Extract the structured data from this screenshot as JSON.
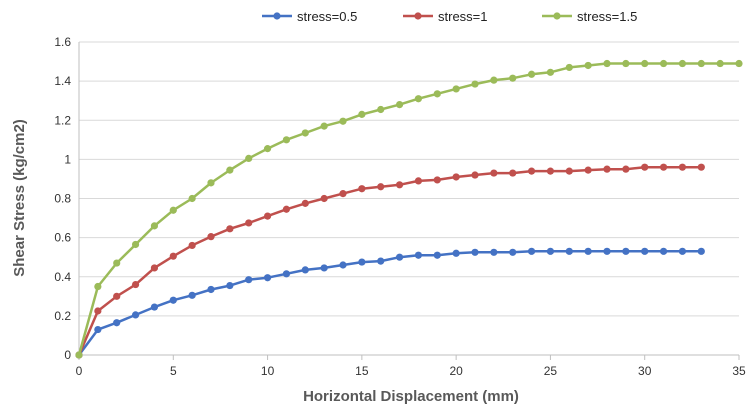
{
  "chart_data": {
    "type": "line",
    "title": "",
    "xlabel": "Horizontal Displacement (mm)",
    "ylabel": "Shear Stress (kg/cm2)",
    "xlim": [
      0,
      35
    ],
    "ylim": [
      0,
      1.6
    ],
    "x_ticks": [
      "0",
      "5",
      "10",
      "15",
      "20",
      "25",
      "30",
      "35"
    ],
    "y_ticks": [
      "0",
      "0.2",
      "0.4",
      "0.6",
      "0.8",
      "1",
      "1.2",
      "1.4",
      "1.6"
    ],
    "grid": "horizontal",
    "legend_position": "top",
    "series": [
      {
        "name": "stress=0.5",
        "color": "#4472c4",
        "x": [
          0,
          1,
          2,
          3,
          4,
          5,
          6,
          7,
          8,
          9,
          10,
          11,
          12,
          13,
          14,
          15,
          16,
          17,
          18,
          19,
          20,
          21,
          22,
          23,
          24,
          25,
          26,
          27,
          28,
          29,
          30,
          31,
          32,
          33
        ],
        "y": [
          0,
          0.13,
          0.165,
          0.205,
          0.245,
          0.28,
          0.305,
          0.335,
          0.355,
          0.385,
          0.395,
          0.415,
          0.435,
          0.445,
          0.46,
          0.475,
          0.48,
          0.5,
          0.51,
          0.51,
          0.52,
          0.525,
          0.525,
          0.525,
          0.53,
          0.53,
          0.53,
          0.53,
          0.53,
          0.53,
          0.53,
          0.53,
          0.53,
          0.53
        ]
      },
      {
        "name": "stress=1",
        "color": "#c0504d",
        "x": [
          0,
          1,
          2,
          3,
          4,
          5,
          6,
          7,
          8,
          9,
          10,
          11,
          12,
          13,
          14,
          15,
          16,
          17,
          18,
          19,
          20,
          21,
          22,
          23,
          24,
          25,
          26,
          27,
          28,
          29,
          30,
          31,
          32,
          33
        ],
        "y": [
          0,
          0.225,
          0.3,
          0.36,
          0.445,
          0.505,
          0.56,
          0.605,
          0.645,
          0.675,
          0.71,
          0.745,
          0.775,
          0.8,
          0.825,
          0.85,
          0.86,
          0.87,
          0.89,
          0.895,
          0.91,
          0.92,
          0.93,
          0.93,
          0.94,
          0.94,
          0.94,
          0.945,
          0.95,
          0.95,
          0.96,
          0.96,
          0.96,
          0.96
        ]
      },
      {
        "name": "stress=1.5",
        "color": "#9bbb59",
        "x": [
          0,
          1,
          2,
          3,
          4,
          5,
          6,
          7,
          8,
          9,
          10,
          11,
          12,
          13,
          14,
          15,
          16,
          17,
          18,
          19,
          20,
          21,
          22,
          23,
          24,
          25,
          26,
          27,
          28,
          29,
          30,
          31,
          32,
          33,
          34,
          35
        ],
        "y": [
          0,
          0.35,
          0.47,
          0.565,
          0.66,
          0.74,
          0.8,
          0.88,
          0.945,
          1.005,
          1.055,
          1.1,
          1.135,
          1.17,
          1.195,
          1.23,
          1.255,
          1.28,
          1.31,
          1.335,
          1.36,
          1.385,
          1.405,
          1.415,
          1.435,
          1.445,
          1.47,
          1.48,
          1.49,
          1.49,
          1.49,
          1.49,
          1.49,
          1.49,
          1.49,
          1.49
        ]
      }
    ]
  }
}
